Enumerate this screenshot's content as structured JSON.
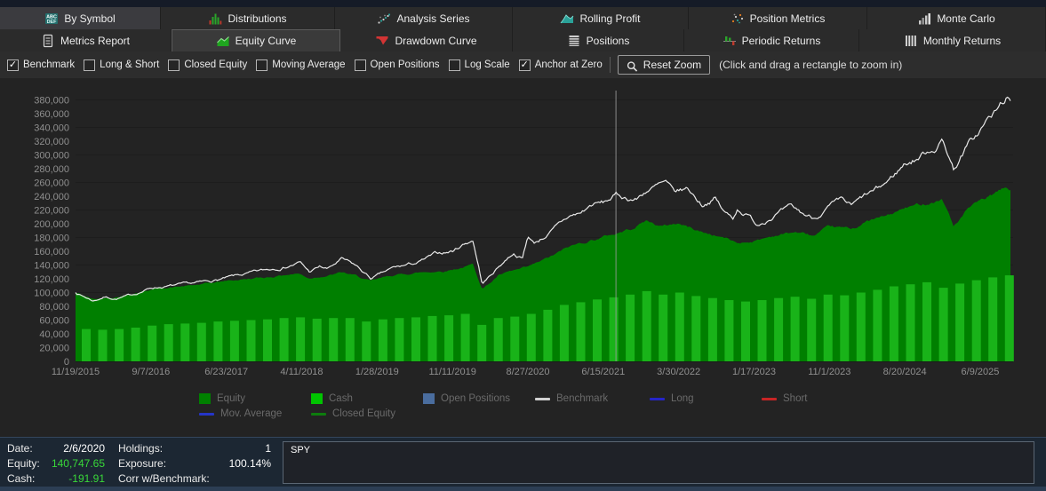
{
  "tabs_row1": [
    {
      "label": "By Symbol",
      "icon": "by-symbol",
      "selected": true
    },
    {
      "label": "Distributions",
      "icon": "distributions",
      "selected": false
    },
    {
      "label": "Analysis Series",
      "icon": "analysis-series",
      "selected": false
    },
    {
      "label": "Rolling Profit",
      "icon": "rolling-profit",
      "selected": false
    },
    {
      "label": "Position Metrics",
      "icon": "position-metrics",
      "selected": false
    },
    {
      "label": "Monte Carlo",
      "icon": "monte-carlo",
      "selected": false
    }
  ],
  "tabs_row2": [
    {
      "label": "Metrics Report",
      "icon": "metrics-report",
      "selected": false
    },
    {
      "label": "Equity Curve",
      "icon": "equity-curve",
      "selected": true
    },
    {
      "label": "Drawdown Curve",
      "icon": "drawdown-curve",
      "selected": false
    },
    {
      "label": "Positions",
      "icon": "positions",
      "selected": false
    },
    {
      "label": "Periodic Returns",
      "icon": "periodic-returns",
      "selected": false
    },
    {
      "label": "Monthly Returns",
      "icon": "monthly-returns",
      "selected": false
    }
  ],
  "toolbar": {
    "checkboxes": [
      {
        "label": "Benchmark",
        "checked": true
      },
      {
        "label": "Long & Short",
        "checked": false
      },
      {
        "label": "Closed Equity",
        "checked": false
      },
      {
        "label": "Moving Average",
        "checked": false
      },
      {
        "label": "Open Positions",
        "checked": false
      },
      {
        "label": "Log Scale",
        "checked": false
      },
      {
        "label": "Anchor at Zero",
        "checked": true
      }
    ],
    "reset_zoom_label": "Reset Zoom",
    "hint": "(Click and drag a rectangle to zoom in)"
  },
  "chart_data": {
    "type": "composite",
    "title": "Equity Curve",
    "ylim": [
      0,
      390000
    ],
    "grid": "horizontal-faint",
    "y_ticks": [
      "380,000",
      "360,000",
      "340,000",
      "320,000",
      "300,000",
      "280,000",
      "260,000",
      "240,000",
      "220,000",
      "200,000",
      "180,000",
      "160,000",
      "140,000",
      "120,000",
      "100,000",
      "80,000",
      "60,000",
      "40,000",
      "20,000",
      "0"
    ],
    "x_ticks": [
      "11/19/2015",
      "9/7/2016",
      "6/23/2017",
      "4/11/2018",
      "1/28/2019",
      "11/11/2019",
      "8/27/2020",
      "6/15/2021",
      "3/30/2022",
      "1/17/2023",
      "11/1/2023",
      "8/20/2024",
      "6/9/2025"
    ],
    "crosshair_t": 0.578,
    "series": [
      {
        "name": "Equity",
        "type": "area",
        "color": "#007f00",
        "anchors_t_value": [
          [
            0,
            100000
          ],
          [
            0.019,
            90000
          ],
          [
            0.043,
            94000
          ],
          [
            0.062,
            99000
          ],
          [
            0.081,
            105000
          ],
          [
            0.1,
            107500
          ],
          [
            0.124,
            110000
          ],
          [
            0.143,
            113000
          ],
          [
            0.162,
            117000
          ],
          [
            0.185,
            120000
          ],
          [
            0.204,
            122000
          ],
          [
            0.224,
            126000
          ],
          [
            0.238,
            128000
          ],
          [
            0.25,
            121000
          ],
          [
            0.261,
            124000
          ],
          [
            0.27,
            125000
          ],
          [
            0.285,
            129000
          ],
          [
            0.3,
            124000
          ],
          [
            0.316,
            116000
          ],
          [
            0.34,
            125000
          ],
          [
            0.366,
            129000
          ],
          [
            0.395,
            132000
          ],
          [
            0.414,
            137000
          ],
          [
            0.425,
            140748
          ],
          [
            0.435,
            106000
          ],
          [
            0.444,
            115000
          ],
          [
            0.452,
            125000
          ],
          [
            0.468,
            131000
          ],
          [
            0.484,
            136000
          ],
          [
            0.509,
            152000
          ],
          [
            0.528,
            166000
          ],
          [
            0.553,
            177000
          ],
          [
            0.578,
            186000
          ],
          [
            0.594,
            193000
          ],
          [
            0.61,
            205000
          ],
          [
            0.627,
            196000
          ],
          [
            0.644,
            201000
          ],
          [
            0.67,
            188000
          ],
          [
            0.694,
            180000
          ],
          [
            0.708,
            172000
          ],
          [
            0.729,
            176000
          ],
          [
            0.75,
            184000
          ],
          [
            0.77,
            188000
          ],
          [
            0.79,
            182000
          ],
          [
            0.807,
            194000
          ],
          [
            0.83,
            192000
          ],
          [
            0.846,
            203000
          ],
          [
            0.87,
            212000
          ],
          [
            0.887,
            222000
          ],
          [
            0.91,
            230000
          ],
          [
            0.927,
            237000
          ],
          [
            0.934,
            215000
          ],
          [
            0.939,
            196000
          ],
          [
            0.955,
            222000
          ],
          [
            0.974,
            236000
          ],
          [
            0.989,
            247000
          ],
          [
            0.996,
            252000
          ],
          [
            1,
            248000
          ]
        ]
      },
      {
        "name": "Cash",
        "type": "bar",
        "color": "#19b319",
        "x_start_t": 0.0114,
        "x_step_t": 0.017633,
        "values": [
          47000,
          46000,
          47000,
          49000,
          52000,
          54000,
          55000,
          56000,
          58000,
          59000,
          60000,
          61000,
          63000,
          64000,
          62000,
          63000,
          63000,
          58000,
          61000,
          63000,
          64000,
          66000,
          67000,
          69000,
          53000,
          63000,
          65000,
          69000,
          75000,
          82000,
          86000,
          90000,
          93000,
          97000,
          102000,
          97000,
          100000,
          95000,
          92000,
          89000,
          87000,
          89000,
          92000,
          94000,
          91000,
          97000,
          96000,
          100000,
          104000,
          109000,
          112000,
          115000,
          107000,
          113000,
          118000,
          122000,
          125000
        ]
      },
      {
        "name": "Benchmark",
        "type": "line",
        "color": "#e8e8e8",
        "anchors_t_value": [
          [
            0,
            100000
          ],
          [
            0.019,
            88000
          ],
          [
            0.031,
            94000
          ],
          [
            0.043,
            91000
          ],
          [
            0.062,
            97000
          ],
          [
            0.081,
            107000
          ],
          [
            0.105,
            110000
          ],
          [
            0.124,
            112000
          ],
          [
            0.143,
            116000
          ],
          [
            0.162,
            121000
          ],
          [
            0.185,
            127000
          ],
          [
            0.204,
            132000
          ],
          [
            0.226,
            139000
          ],
          [
            0.24,
            144000
          ],
          [
            0.25,
            130000
          ],
          [
            0.261,
            137000
          ],
          [
            0.27,
            134000
          ],
          [
            0.285,
            148000
          ],
          [
            0.3,
            138000
          ],
          [
            0.316,
            120000
          ],
          [
            0.34,
            135000
          ],
          [
            0.366,
            143000
          ],
          [
            0.385,
            155000
          ],
          [
            0.403,
            160000
          ],
          [
            0.414,
            170000
          ],
          [
            0.425,
            177000
          ],
          [
            0.435,
            113000
          ],
          [
            0.444,
            125000
          ],
          [
            0.452,
            137000
          ],
          [
            0.468,
            158000
          ],
          [
            0.478,
            150000
          ],
          [
            0.484,
            183000
          ],
          [
            0.49,
            172000
          ],
          [
            0.5,
            180000
          ],
          [
            0.51,
            190000
          ],
          [
            0.528,
            210000
          ],
          [
            0.54,
            215000
          ],
          [
            0.553,
            228000
          ],
          [
            0.565,
            230000
          ],
          [
            0.578,
            241000
          ],
          [
            0.59,
            237000
          ],
          [
            0.6,
            236000
          ],
          [
            0.61,
            248000
          ],
          [
            0.623,
            255000
          ],
          [
            0.631,
            258000
          ],
          [
            0.64,
            243000
          ],
          [
            0.655,
            250000
          ],
          [
            0.67,
            228000
          ],
          [
            0.684,
            238000
          ],
          [
            0.694,
            216000
          ],
          [
            0.703,
            208000
          ],
          [
            0.708,
            222000
          ],
          [
            0.72,
            212000
          ],
          [
            0.729,
            199000
          ],
          [
            0.74,
            208000
          ],
          [
            0.75,
            216000
          ],
          [
            0.765,
            222000
          ],
          [
            0.78,
            212000
          ],
          [
            0.79,
            208000
          ],
          [
            0.807,
            226000
          ],
          [
            0.82,
            232000
          ],
          [
            0.83,
            224000
          ],
          [
            0.846,
            240000
          ],
          [
            0.86,
            250000
          ],
          [
            0.87,
            262000
          ],
          [
            0.887,
            287000
          ],
          [
            0.9,
            295000
          ],
          [
            0.91,
            305000
          ],
          [
            0.92,
            312000
          ],
          [
            0.927,
            322000
          ],
          [
            0.934,
            300000
          ],
          [
            0.939,
            280000
          ],
          [
            0.948,
            300000
          ],
          [
            0.955,
            315000
          ],
          [
            0.965,
            330000
          ],
          [
            0.974,
            348000
          ],
          [
            0.985,
            362000
          ],
          [
            0.99,
            372000
          ],
          [
            0.996,
            384000
          ],
          [
            1,
            371000
          ]
        ]
      }
    ]
  },
  "legend": {
    "rows": [
      [
        {
          "label": "Equity",
          "swatch": "square",
          "color": "#008000"
        },
        {
          "label": "Cash",
          "swatch": "square",
          "color": "#00c400"
        },
        {
          "label": "Open Positions",
          "swatch": "square",
          "color": "#4a6d9e"
        },
        {
          "label": "Benchmark",
          "swatch": "line",
          "color": "#d0d0d0"
        },
        {
          "label": "Long",
          "swatch": "line",
          "color": "#2525c8"
        },
        {
          "label": "Short",
          "swatch": "line",
          "color": "#c82525"
        }
      ],
      [
        {
          "label": "Mov. Average",
          "swatch": "line",
          "color": "#2535c8"
        },
        {
          "label": "Closed Equity",
          "swatch": "line",
          "color": "#0d7d0d"
        }
      ]
    ]
  },
  "status": {
    "columns": [
      {
        "rows": [
          {
            "label": "Date:",
            "value": "2/6/2020",
            "highlight": false
          },
          {
            "label": "Equity:",
            "value": "140,747.65",
            "highlight": true
          },
          {
            "label": "Cash:",
            "value": "-191.91",
            "highlight": true
          }
        ]
      },
      {
        "rows": [
          {
            "label": "Holdings:",
            "value": "1",
            "highlight": false
          },
          {
            "label": "Exposure:",
            "value": "100.14%",
            "highlight": false
          },
          {
            "label": "Corr w/Benchmark:",
            "value": "",
            "highlight": false
          }
        ]
      }
    ]
  },
  "symbol_box": {
    "text": "SPY"
  }
}
